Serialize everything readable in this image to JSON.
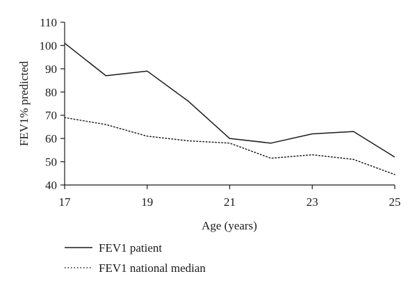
{
  "chart_data": {
    "type": "line",
    "title": "",
    "xlabel": "Age (years)",
    "ylabel": "FEV1% predicted",
    "x": [
      17,
      18,
      19,
      20,
      21,
      22,
      23,
      24,
      25
    ],
    "xlim": [
      17,
      25
    ],
    "ylim": [
      40,
      110
    ],
    "xticks": [
      "17",
      "19",
      "21",
      "23",
      "25"
    ],
    "yticks": [
      "40",
      "50",
      "60",
      "70",
      "80",
      "90",
      "100",
      "110"
    ],
    "grid": false,
    "legend_position": "bottom-left",
    "series": [
      {
        "name": "FEV1 patient",
        "style": "solid",
        "color": "#1a1a1a",
        "values": [
          101,
          87,
          89,
          76,
          60,
          58,
          62,
          63,
          52
        ]
      },
      {
        "name": "FEV1 national median",
        "style": "dotted",
        "color": "#1a1a1a",
        "values": [
          69,
          66,
          61,
          59,
          58,
          51.5,
          53,
          51,
          44.5
        ]
      }
    ]
  }
}
